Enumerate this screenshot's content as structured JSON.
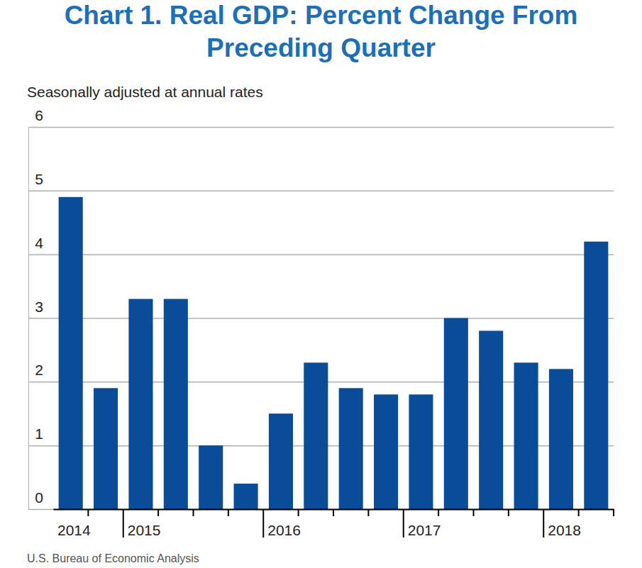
{
  "chart_data": {
    "type": "bar",
    "title": "Chart 1. Real GDP: Percent Change From Preceding Quarter",
    "subtitle": "Seasonally adjusted at annual rates",
    "source": "U.S. Bureau of Economic Analysis",
    "categories": [
      "2014",
      null,
      "2015",
      null,
      null,
      null,
      "2016",
      null,
      null,
      null,
      "2017",
      null,
      null,
      null,
      "2018",
      null
    ],
    "values": [
      4.9,
      1.9,
      3.3,
      3.3,
      1.0,
      0.4,
      1.5,
      2.3,
      1.9,
      1.8,
      1.8,
      3.0,
      2.8,
      2.3,
      2.2,
      4.2
    ],
    "color": "#0a4c97",
    "ylim": [
      0,
      6
    ],
    "yticks": [
      0,
      1,
      2,
      3,
      4,
      5,
      6
    ],
    "grid": true
  }
}
